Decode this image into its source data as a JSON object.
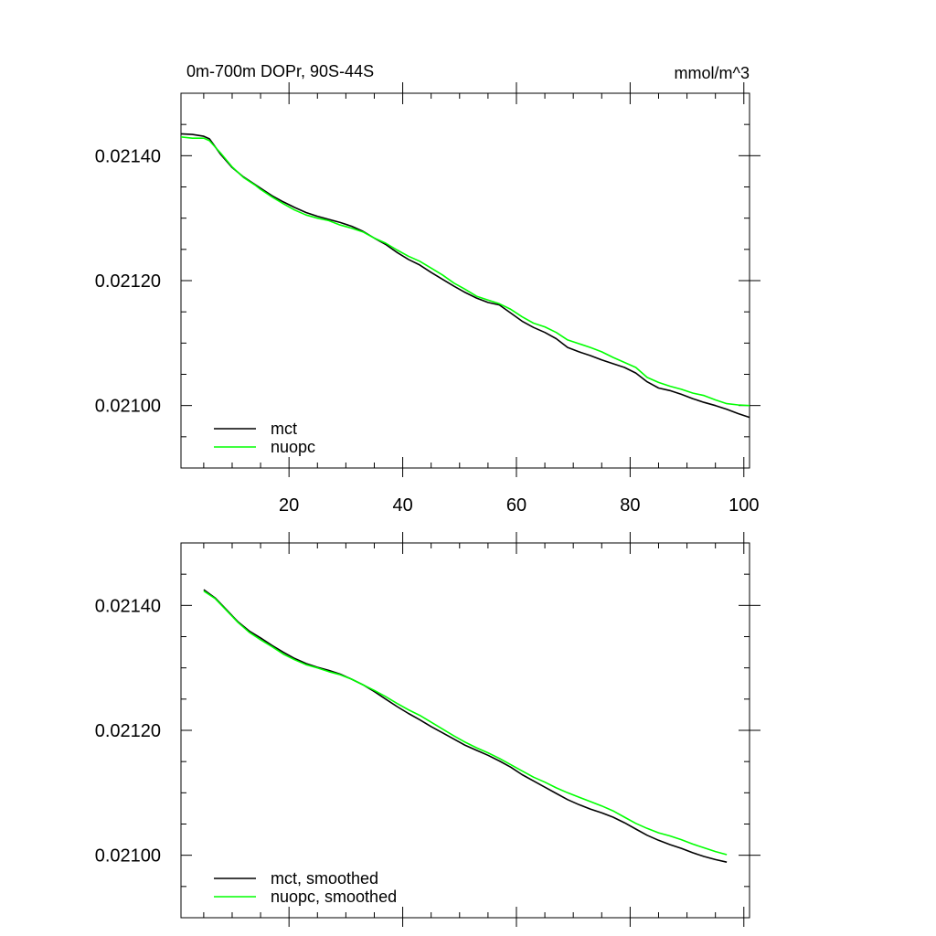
{
  "chart_data": [
    {
      "type": "line",
      "title": "0m-700m DOPr, 90S-44S",
      "units": "mmol/m^3",
      "xlim": [
        1,
        101
      ],
      "ylim": [
        0.0209,
        0.0215
      ],
      "xticks": [
        20,
        40,
        60,
        80,
        100
      ],
      "xtick_labels": [
        "20",
        "40",
        "60",
        "80",
        "100"
      ],
      "yticks": [
        0.0214,
        0.0212,
        0.021
      ],
      "ytick_labels": [
        "0.02140",
        "0.02120",
        "0.02100"
      ],
      "legend": "bottom-left",
      "series": [
        {
          "name": "mct",
          "color": "#000000",
          "x": [
            1,
            3,
            5,
            6,
            8,
            10,
            12,
            14,
            15,
            17,
            19,
            21,
            23,
            25,
            27,
            29,
            31,
            33,
            35,
            37,
            39,
            41,
            43,
            45,
            47,
            49,
            51,
            53,
            55,
            57,
            59,
            61,
            63,
            65,
            67,
            69,
            71,
            73,
            75,
            77,
            79,
            81,
            83,
            85,
            87,
            89,
            91,
            93,
            95,
            97,
            99,
            101
          ],
          "y": [
            0.021435,
            0.021434,
            0.021431,
            0.021427,
            0.021402,
            0.021381,
            0.021366,
            0.021354,
            0.021348,
            0.021336,
            0.021326,
            0.021317,
            0.021309,
            0.021303,
            0.021298,
            0.021293,
            0.021287,
            0.021279,
            0.021268,
            0.021258,
            0.021245,
            0.021234,
            0.021225,
            0.021213,
            0.021202,
            0.021191,
            0.021181,
            0.021172,
            0.021165,
            0.021161,
            0.021148,
            0.021135,
            0.021125,
            0.021117,
            0.021107,
            0.021093,
            0.021086,
            0.02108,
            0.021073,
            0.021067,
            0.021061,
            0.021052,
            0.021038,
            0.021028,
            0.021024,
            0.021018,
            0.021011,
            0.021005,
            0.021,
            0.020994,
            0.020987,
            0.020981
          ]
        },
        {
          "name": "nuopc",
          "color": "#00ff00",
          "x": [
            1,
            3,
            5,
            6,
            8,
            10,
            12,
            14,
            15,
            17,
            19,
            21,
            23,
            25,
            27,
            29,
            31,
            33,
            35,
            37,
            39,
            41,
            43,
            45,
            47,
            49,
            51,
            53,
            55,
            57,
            59,
            61,
            63,
            65,
            67,
            69,
            71,
            73,
            75,
            77,
            79,
            81,
            83,
            85,
            87,
            89,
            91,
            93,
            95,
            97,
            99,
            101
          ],
          "y": [
            0.02143,
            0.021428,
            0.021428,
            0.021424,
            0.021404,
            0.021382,
            0.021365,
            0.021353,
            0.021346,
            0.021334,
            0.021323,
            0.021313,
            0.021305,
            0.0213,
            0.021296,
            0.021289,
            0.021284,
            0.021278,
            0.021268,
            0.02126,
            0.021249,
            0.021239,
            0.021231,
            0.02122,
            0.021209,
            0.021196,
            0.021186,
            0.021175,
            0.021169,
            0.021163,
            0.021154,
            0.021142,
            0.021132,
            0.021126,
            0.021117,
            0.021105,
            0.021099,
            0.021093,
            0.021086,
            0.021077,
            0.021069,
            0.021061,
            0.021045,
            0.021037,
            0.021031,
            0.021026,
            0.02102,
            0.021016,
            0.021009,
            0.021003,
            0.021001,
            0.021
          ]
        }
      ]
    },
    {
      "type": "line",
      "title": "",
      "xlim": [
        1,
        101
      ],
      "ylim": [
        0.0209,
        0.0215
      ],
      "xticks": [
        20,
        40,
        60,
        80,
        100
      ],
      "xtick_labels": [],
      "yticks": [
        0.0214,
        0.0212,
        0.021
      ],
      "ytick_labels": [
        "0.02140",
        "0.02120",
        "0.02100"
      ],
      "legend": "bottom-left",
      "series": [
        {
          "name": "mct, smoothed",
          "color": "#000000",
          "x": [
            5,
            7,
            9,
            11,
            13,
            15,
            17,
            19,
            21,
            23,
            25,
            27,
            29,
            31,
            33,
            35,
            37,
            39,
            41,
            43,
            45,
            47,
            49,
            51,
            53,
            55,
            57,
            59,
            61,
            63,
            65,
            67,
            69,
            71,
            73,
            75,
            77,
            79,
            81,
            83,
            85,
            87,
            89,
            91,
            93,
            95,
            97
          ],
          "y": [
            0.021425,
            0.021412,
            0.021393,
            0.021374,
            0.021359,
            0.021348,
            0.021336,
            0.021325,
            0.021315,
            0.021307,
            0.021301,
            0.021296,
            0.02129,
            0.021282,
            0.021273,
            0.021262,
            0.02125,
            0.021238,
            0.021227,
            0.021217,
            0.021206,
            0.021196,
            0.021186,
            0.021176,
            0.021168,
            0.02116,
            0.021151,
            0.021141,
            0.021129,
            0.021119,
            0.021109,
            0.021099,
            0.021089,
            0.021081,
            0.021074,
            0.021068,
            0.021061,
            0.021052,
            0.021042,
            0.021032,
            0.021024,
            0.021017,
            0.021011,
            0.021004,
            0.020998,
            0.020993,
            0.020989
          ]
        },
        {
          "name": "nuopc, smoothed",
          "color": "#00ff00",
          "x": [
            5,
            7,
            9,
            11,
            13,
            15,
            17,
            19,
            21,
            23,
            25,
            27,
            29,
            31,
            33,
            35,
            37,
            39,
            41,
            43,
            45,
            47,
            49,
            51,
            53,
            55,
            57,
            59,
            61,
            63,
            65,
            67,
            69,
            71,
            73,
            75,
            77,
            79,
            81,
            83,
            85,
            87,
            89,
            91,
            93,
            95,
            97
          ],
          "y": [
            0.021423,
            0.021411,
            0.021392,
            0.021373,
            0.021357,
            0.021345,
            0.021334,
            0.021322,
            0.021313,
            0.021305,
            0.0213,
            0.021294,
            0.021289,
            0.021282,
            0.021273,
            0.021264,
            0.021254,
            0.021243,
            0.021233,
            0.021224,
            0.021213,
            0.021202,
            0.021191,
            0.021181,
            0.021172,
            0.021164,
            0.021155,
            0.021145,
            0.021135,
            0.021125,
            0.021117,
            0.021108,
            0.0211,
            0.021093,
            0.021086,
            0.021079,
            0.021071,
            0.021061,
            0.021051,
            0.021043,
            0.021036,
            0.021031,
            0.021025,
            0.021018,
            0.021012,
            0.021006,
            0.021001
          ]
        }
      ]
    }
  ]
}
